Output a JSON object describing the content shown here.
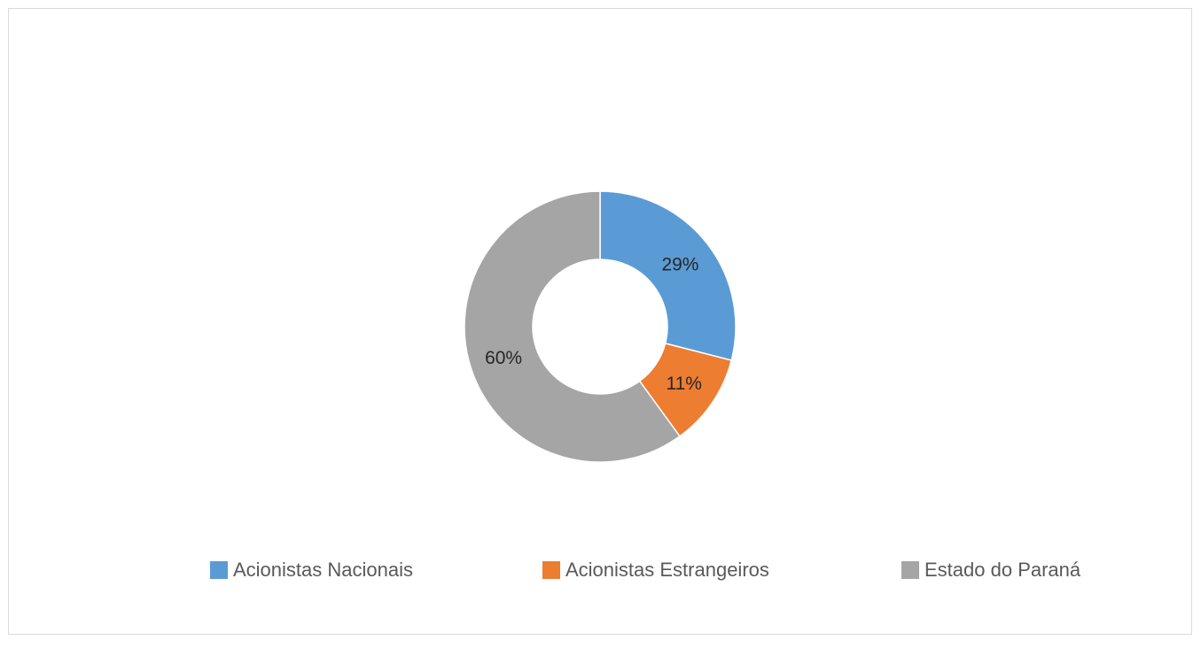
{
  "chart_data": {
    "type": "pie",
    "variant": "donut",
    "title": "",
    "categories": [
      "Acionistas Nacionais",
      "Acionistas Estrangeiros",
      "Estado do Paraná"
    ],
    "values": [
      29,
      11,
      60
    ],
    "labels": [
      "29%",
      "11%",
      "60%"
    ],
    "colors": [
      "#5b9bd5",
      "#ed7d31",
      "#a5a5a5"
    ],
    "legend_position": "bottom"
  }
}
